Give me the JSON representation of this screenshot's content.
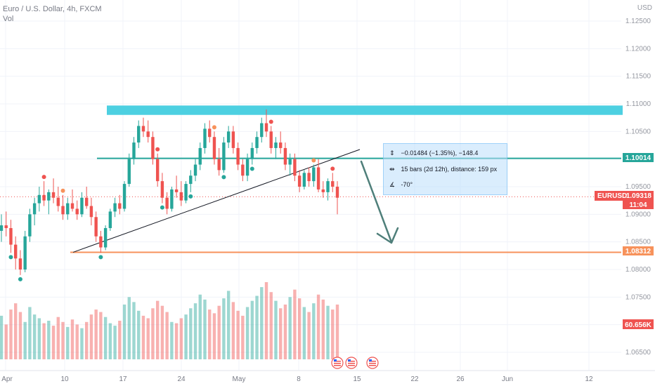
{
  "legend": {
    "title": "Euro / U.S. Dollar, 4h, FXCM",
    "volume_label": "Vol"
  },
  "price_axis": {
    "currency": "USD",
    "ticks": [
      "1.12500",
      "1.12000",
      "1.11500",
      "1.11000",
      "1.10500",
      "1.09500",
      "1.09000",
      "1.08500",
      "1.08000",
      "1.07500",
      "1.06500"
    ]
  },
  "time_axis": {
    "ticks": [
      "Apr",
      "10",
      "17",
      "24",
      "May",
      "8",
      "15",
      "22",
      "26",
      "Jun",
      "12"
    ]
  },
  "tags": {
    "symbol": "EURUSD",
    "last_price": "1.09318",
    "countdown": "11:04",
    "support_price": "1.08312",
    "resistance_price": "1.10014",
    "volume_value": "60.656K"
  },
  "measurement": {
    "change": "−0.01484 (−1.35%), −148.4",
    "bars": "15 bars (2d 12h), distance: 159 px",
    "angle": "-70°"
  },
  "colors": {
    "up": "#26a69a",
    "down": "#ef5350",
    "zone": "#4dd0e1",
    "resistance_line": "#26a69a",
    "support_line": "#f7925b",
    "arrow": "#4f7f7a"
  },
  "chart_data": {
    "type": "candlestick",
    "symbol": "EURUSD",
    "timeframe": "4h",
    "x_range": [
      "Apr",
      "Jun 12"
    ],
    "ylim": [
      1.063,
      1.128
    ],
    "price_scale_ticks": [
      1.125,
      1.12,
      1.115,
      1.11,
      1.105,
      1.095,
      1.09,
      1.085,
      1.08,
      1.075,
      1.065
    ],
    "resistance_zone": [
      1.108,
      1.1097
    ],
    "horizontal_lines": [
      {
        "price": 1.10014,
        "label": "1.10014"
      },
      {
        "price": 1.08312,
        "label": "1.08312"
      }
    ],
    "last_price": 1.09318,
    "volume_last": "60.656K",
    "candles": [
      [
        1.087,
        1.09,
        1.085,
        1.088
      ],
      [
        1.088,
        1.0905,
        1.086,
        1.0875
      ],
      [
        1.0875,
        1.089,
        1.083,
        1.0845
      ],
      [
        1.0845,
        1.086,
        1.08,
        1.082
      ],
      [
        1.082,
        1.0835,
        1.079,
        1.08
      ],
      [
        1.08,
        1.087,
        1.0795,
        1.086
      ],
      [
        1.086,
        1.091,
        1.085,
        1.09
      ],
      [
        1.09,
        1.093,
        1.088,
        1.092
      ],
      [
        1.092,
        1.095,
        1.0905,
        1.0935
      ],
      [
        1.0935,
        1.096,
        1.0915,
        1.0925
      ],
      [
        1.0925,
        1.0945,
        1.09,
        1.094
      ],
      [
        1.094,
        1.0965,
        1.092,
        1.093
      ],
      [
        1.093,
        1.095,
        1.0905,
        1.0915
      ],
      [
        1.0915,
        1.0935,
        1.089,
        1.09
      ],
      [
        1.09,
        1.093,
        1.089,
        1.092
      ],
      [
        1.092,
        1.0945,
        1.0905,
        1.091
      ],
      [
        1.091,
        1.0925,
        1.089,
        1.09
      ],
      [
        1.09,
        1.094,
        1.0895,
        1.093
      ],
      [
        1.093,
        1.095,
        1.091,
        1.0915
      ],
      [
        1.0915,
        1.093,
        1.088,
        1.0895
      ],
      [
        1.0895,
        1.0905,
        1.085,
        1.086
      ],
      [
        1.086,
        1.087,
        1.083,
        1.084
      ],
      [
        1.084,
        1.088,
        1.0835,
        1.0875
      ],
      [
        1.0875,
        1.091,
        1.087,
        1.0905
      ],
      [
        1.0905,
        1.093,
        1.0895,
        1.092
      ],
      [
        1.092,
        1.0935,
        1.09,
        1.091
      ],
      [
        1.091,
        1.096,
        1.0905,
        1.0955
      ],
      [
        1.0955,
        1.101,
        1.095,
        1.1
      ],
      [
        1.1,
        1.104,
        1.099,
        1.103
      ],
      [
        1.103,
        1.107,
        1.102,
        1.106
      ],
      [
        1.106,
        1.1075,
        1.104,
        1.105
      ],
      [
        1.105,
        1.107,
        1.103,
        1.104
      ],
      [
        1.104,
        1.105,
        1.099,
        1.1
      ],
      [
        1.1,
        1.101,
        1.095,
        1.096
      ],
      [
        1.096,
        1.0975,
        1.092,
        1.093
      ],
      [
        1.093,
        1.094,
        1.09,
        1.091
      ],
      [
        1.091,
        1.095,
        1.0905,
        1.0945
      ],
      [
        1.0945,
        1.097,
        1.093,
        1.094
      ],
      [
        1.094,
        1.096,
        1.0915,
        1.0925
      ],
      [
        1.0925,
        1.096,
        1.092,
        1.0955
      ],
      [
        1.0955,
        1.098,
        1.094,
        1.097
      ],
      [
        1.097,
        1.1,
        1.096,
        1.099
      ],
      [
        1.099,
        1.103,
        1.098,
        1.102
      ],
      [
        1.102,
        1.1065,
        1.101,
        1.1055
      ],
      [
        1.1055,
        1.107,
        1.103,
        1.104
      ],
      [
        1.104,
        1.105,
        1.099,
        1.1
      ],
      [
        1.1,
        1.102,
        1.097,
        1.098
      ],
      [
        1.098,
        1.104,
        1.0975,
        1.103
      ],
      [
        1.103,
        1.106,
        1.102,
        1.105
      ],
      [
        1.105,
        1.106,
        1.101,
        1.102
      ],
      [
        1.102,
        1.103,
        1.098,
        1.099
      ],
      [
        1.099,
        1.1,
        1.096,
        1.097
      ],
      [
        1.097,
        1.101,
        1.096,
        1.1
      ],
      [
        1.1,
        1.103,
        1.099,
        1.102
      ],
      [
        1.102,
        1.105,
        1.101,
        1.104
      ],
      [
        1.104,
        1.1075,
        1.103,
        1.1065
      ],
      [
        1.1065,
        1.109,
        1.104,
        1.105
      ],
      [
        1.105,
        1.106,
        1.101,
        1.102
      ],
      [
        1.102,
        1.104,
        1.1,
        1.103
      ],
      [
        1.103,
        1.105,
        1.101,
        1.102
      ],
      [
        1.102,
        1.103,
        1.098,
        1.099
      ],
      [
        1.099,
        1.101,
        1.097,
        1.1
      ],
      [
        1.1,
        1.101,
        1.096,
        1.097
      ],
      [
        1.097,
        1.098,
        1.094,
        1.095
      ],
      [
        1.095,
        1.098,
        1.0945,
        1.0975
      ],
      [
        1.0975,
        1.0985,
        1.095,
        1.096
      ],
      [
        1.096,
        1.099,
        1.095,
        1.0985
      ],
      [
        1.0985,
        1.1,
        1.094,
        1.0945
      ],
      [
        1.0945,
        1.096,
        1.093,
        1.094
      ],
      [
        1.094,
        1.0965,
        1.0925,
        1.096
      ],
      [
        1.096,
        1.0975,
        1.094,
        1.095
      ],
      [
        1.095,
        1.096,
        1.09,
        1.093
      ]
    ],
    "volume": [
      35,
      28,
      40,
      45,
      38,
      30,
      42,
      36,
      33,
      29,
      31,
      27,
      34,
      30,
      26,
      32,
      28,
      25,
      30,
      36,
      40,
      38,
      34,
      29,
      27,
      31,
      44,
      50,
      46,
      39,
      35,
      33,
      41,
      47,
      43,
      38,
      30,
      29,
      33,
      36,
      41,
      45,
      52,
      48,
      40,
      37,
      43,
      49,
      55,
      46,
      39,
      35,
      42,
      47,
      51,
      58,
      62,
      54,
      47,
      41,
      44,
      50,
      56,
      49,
      42,
      38,
      45,
      52,
      48,
      43,
      40,
      44
    ]
  }
}
